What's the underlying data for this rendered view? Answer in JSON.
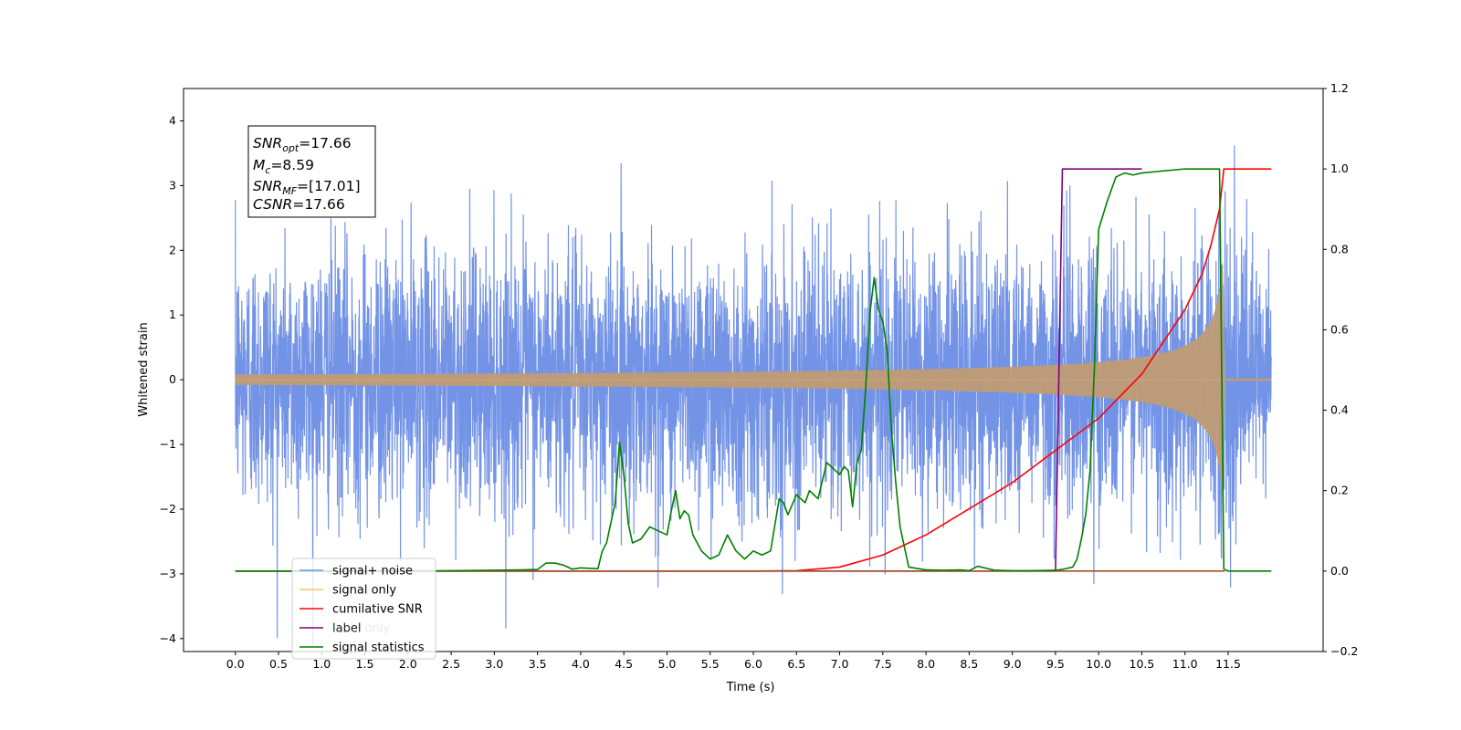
{
  "chart_data": {
    "type": "line",
    "xlabel": "Time (s)",
    "ylabel": "Whitened strain",
    "xlim": [
      -0.6,
      12.6
    ],
    "ylim": [
      -4.2,
      4.5
    ],
    "y2lim": [
      -0.2,
      1.2
    ],
    "x_ticks": [
      "0.0",
      "0.5",
      "1.0",
      "1.5",
      "2.0",
      "2.5",
      "3.0",
      "3.5",
      "4.0",
      "4.5",
      "5.0",
      "5.5",
      "6.0",
      "6.5",
      "7.0",
      "7.5",
      "8.0",
      "8.5",
      "9.0",
      "9.5",
      "10.0",
      "10.5",
      "11.0",
      "11.5"
    ],
    "y_ticks": [
      "−4",
      "−3",
      "−2",
      "−1",
      "0",
      "1",
      "2",
      "3",
      "4"
    ],
    "y2_ticks": [
      "−0.2",
      "0.0",
      "0.2",
      "0.4",
      "0.6",
      "0.8",
      "1.0",
      "1.2"
    ],
    "annotation": {
      "snr_opt": "=17.66",
      "mc": "=8.59",
      "snr_mf": "=[17.01]",
      "csnr": "=17.66"
    },
    "legend_position": "lower-left",
    "series": [
      {
        "name": "signal+ noise",
        "axis": "left",
        "color": "#7393e6",
        "kind": "gaussian-noise",
        "x_range": [
          0.0,
          12.0
        ],
        "std": 1.0
      },
      {
        "name": "signal only",
        "axis": "left",
        "color": "#f5c26b",
        "kind": "chirp",
        "x_range": [
          0.0,
          12.0
        ],
        "merger_time": 11.45,
        "peak_amplitude": 2.1
      },
      {
        "name": "cumilative SNR",
        "axis": "right",
        "color": "#ff0000",
        "x": [
          0,
          6.0,
          6.5,
          7.0,
          7.5,
          8.0,
          8.5,
          9.0,
          9.5,
          10.0,
          10.5,
          11.0,
          11.2,
          11.3,
          11.4,
          11.45,
          11.5,
          12.0
        ],
        "y": [
          0,
          0,
          0.001,
          0.01,
          0.04,
          0.09,
          0.155,
          0.22,
          0.3,
          0.38,
          0.49,
          0.65,
          0.74,
          0.81,
          0.9,
          1.0,
          1.0,
          1.0
        ]
      },
      {
        "name": "label",
        "axis": "right",
        "color": "#800080",
        "x": [
          0,
          9.5,
          9.58,
          10.5
        ],
        "y": [
          0,
          0,
          1.0,
          1.0
        ]
      },
      {
        "name": "label only",
        "axis": "right",
        "color": "#a0522d",
        "x": [
          0,
          11.46
        ],
        "y": [
          0,
          0
        ]
      },
      {
        "name": "signal statistics",
        "axis": "right",
        "color": "#008000",
        "x": [
          0,
          1,
          2,
          3,
          3.3,
          3.5,
          3.6,
          3.7,
          3.8,
          3.9,
          4.0,
          4.1,
          4.2,
          4.25,
          4.3,
          4.4,
          4.45,
          4.5,
          4.55,
          4.6,
          4.7,
          4.8,
          4.9,
          5.0,
          5.05,
          5.1,
          5.15,
          5.2,
          5.25,
          5.3,
          5.4,
          5.5,
          5.6,
          5.7,
          5.8,
          5.9,
          6.0,
          6.1,
          6.2,
          6.3,
          6.35,
          6.4,
          6.5,
          6.6,
          6.65,
          6.7,
          6.75,
          6.85,
          6.9,
          6.95,
          7.0,
          7.05,
          7.1,
          7.15,
          7.2,
          7.25,
          7.3,
          7.35,
          7.4,
          7.45,
          7.5,
          7.55,
          7.6,
          7.65,
          7.7,
          7.8,
          8.0,
          8.2,
          8.4,
          8.5,
          8.6,
          8.8,
          9.0,
          9.2,
          9.5,
          9.6,
          9.7,
          9.75,
          9.8,
          9.85,
          9.9,
          9.95,
          10.0,
          10.1,
          10.2,
          10.3,
          10.4,
          10.5,
          11.0,
          11.3,
          11.4,
          11.45,
          11.5,
          11.55,
          11.6,
          12.0
        ],
        "y": [
          0,
          0,
          0,
          0.002,
          0.003,
          0.004,
          0.02,
          0.02,
          0.015,
          0.005,
          0.008,
          0.007,
          0.006,
          0.05,
          0.07,
          0.17,
          0.32,
          0.24,
          0.12,
          0.07,
          0.08,
          0.11,
          0.1,
          0.09,
          0.15,
          0.2,
          0.13,
          0.15,
          0.14,
          0.09,
          0.05,
          0.03,
          0.04,
          0.09,
          0.05,
          0.03,
          0.05,
          0.04,
          0.05,
          0.18,
          0.17,
          0.14,
          0.19,
          0.17,
          0.2,
          0.19,
          0.18,
          0.27,
          0.26,
          0.25,
          0.24,
          0.26,
          0.25,
          0.16,
          0.27,
          0.3,
          0.45,
          0.64,
          0.73,
          0.65,
          0.62,
          0.55,
          0.35,
          0.22,
          0.11,
          0.01,
          0.003,
          0.002,
          0.003,
          0.001,
          0.012,
          0.002,
          0.001,
          0.001,
          0.002,
          0.005,
          0.01,
          0.03,
          0.08,
          0.14,
          0.25,
          0.5,
          0.85,
          0.92,
          0.98,
          0.99,
          0.985,
          0.99,
          1.0,
          1.0,
          1.0,
          0.005,
          0.0,
          0.0,
          0.0,
          0.0
        ]
      }
    ]
  }
}
